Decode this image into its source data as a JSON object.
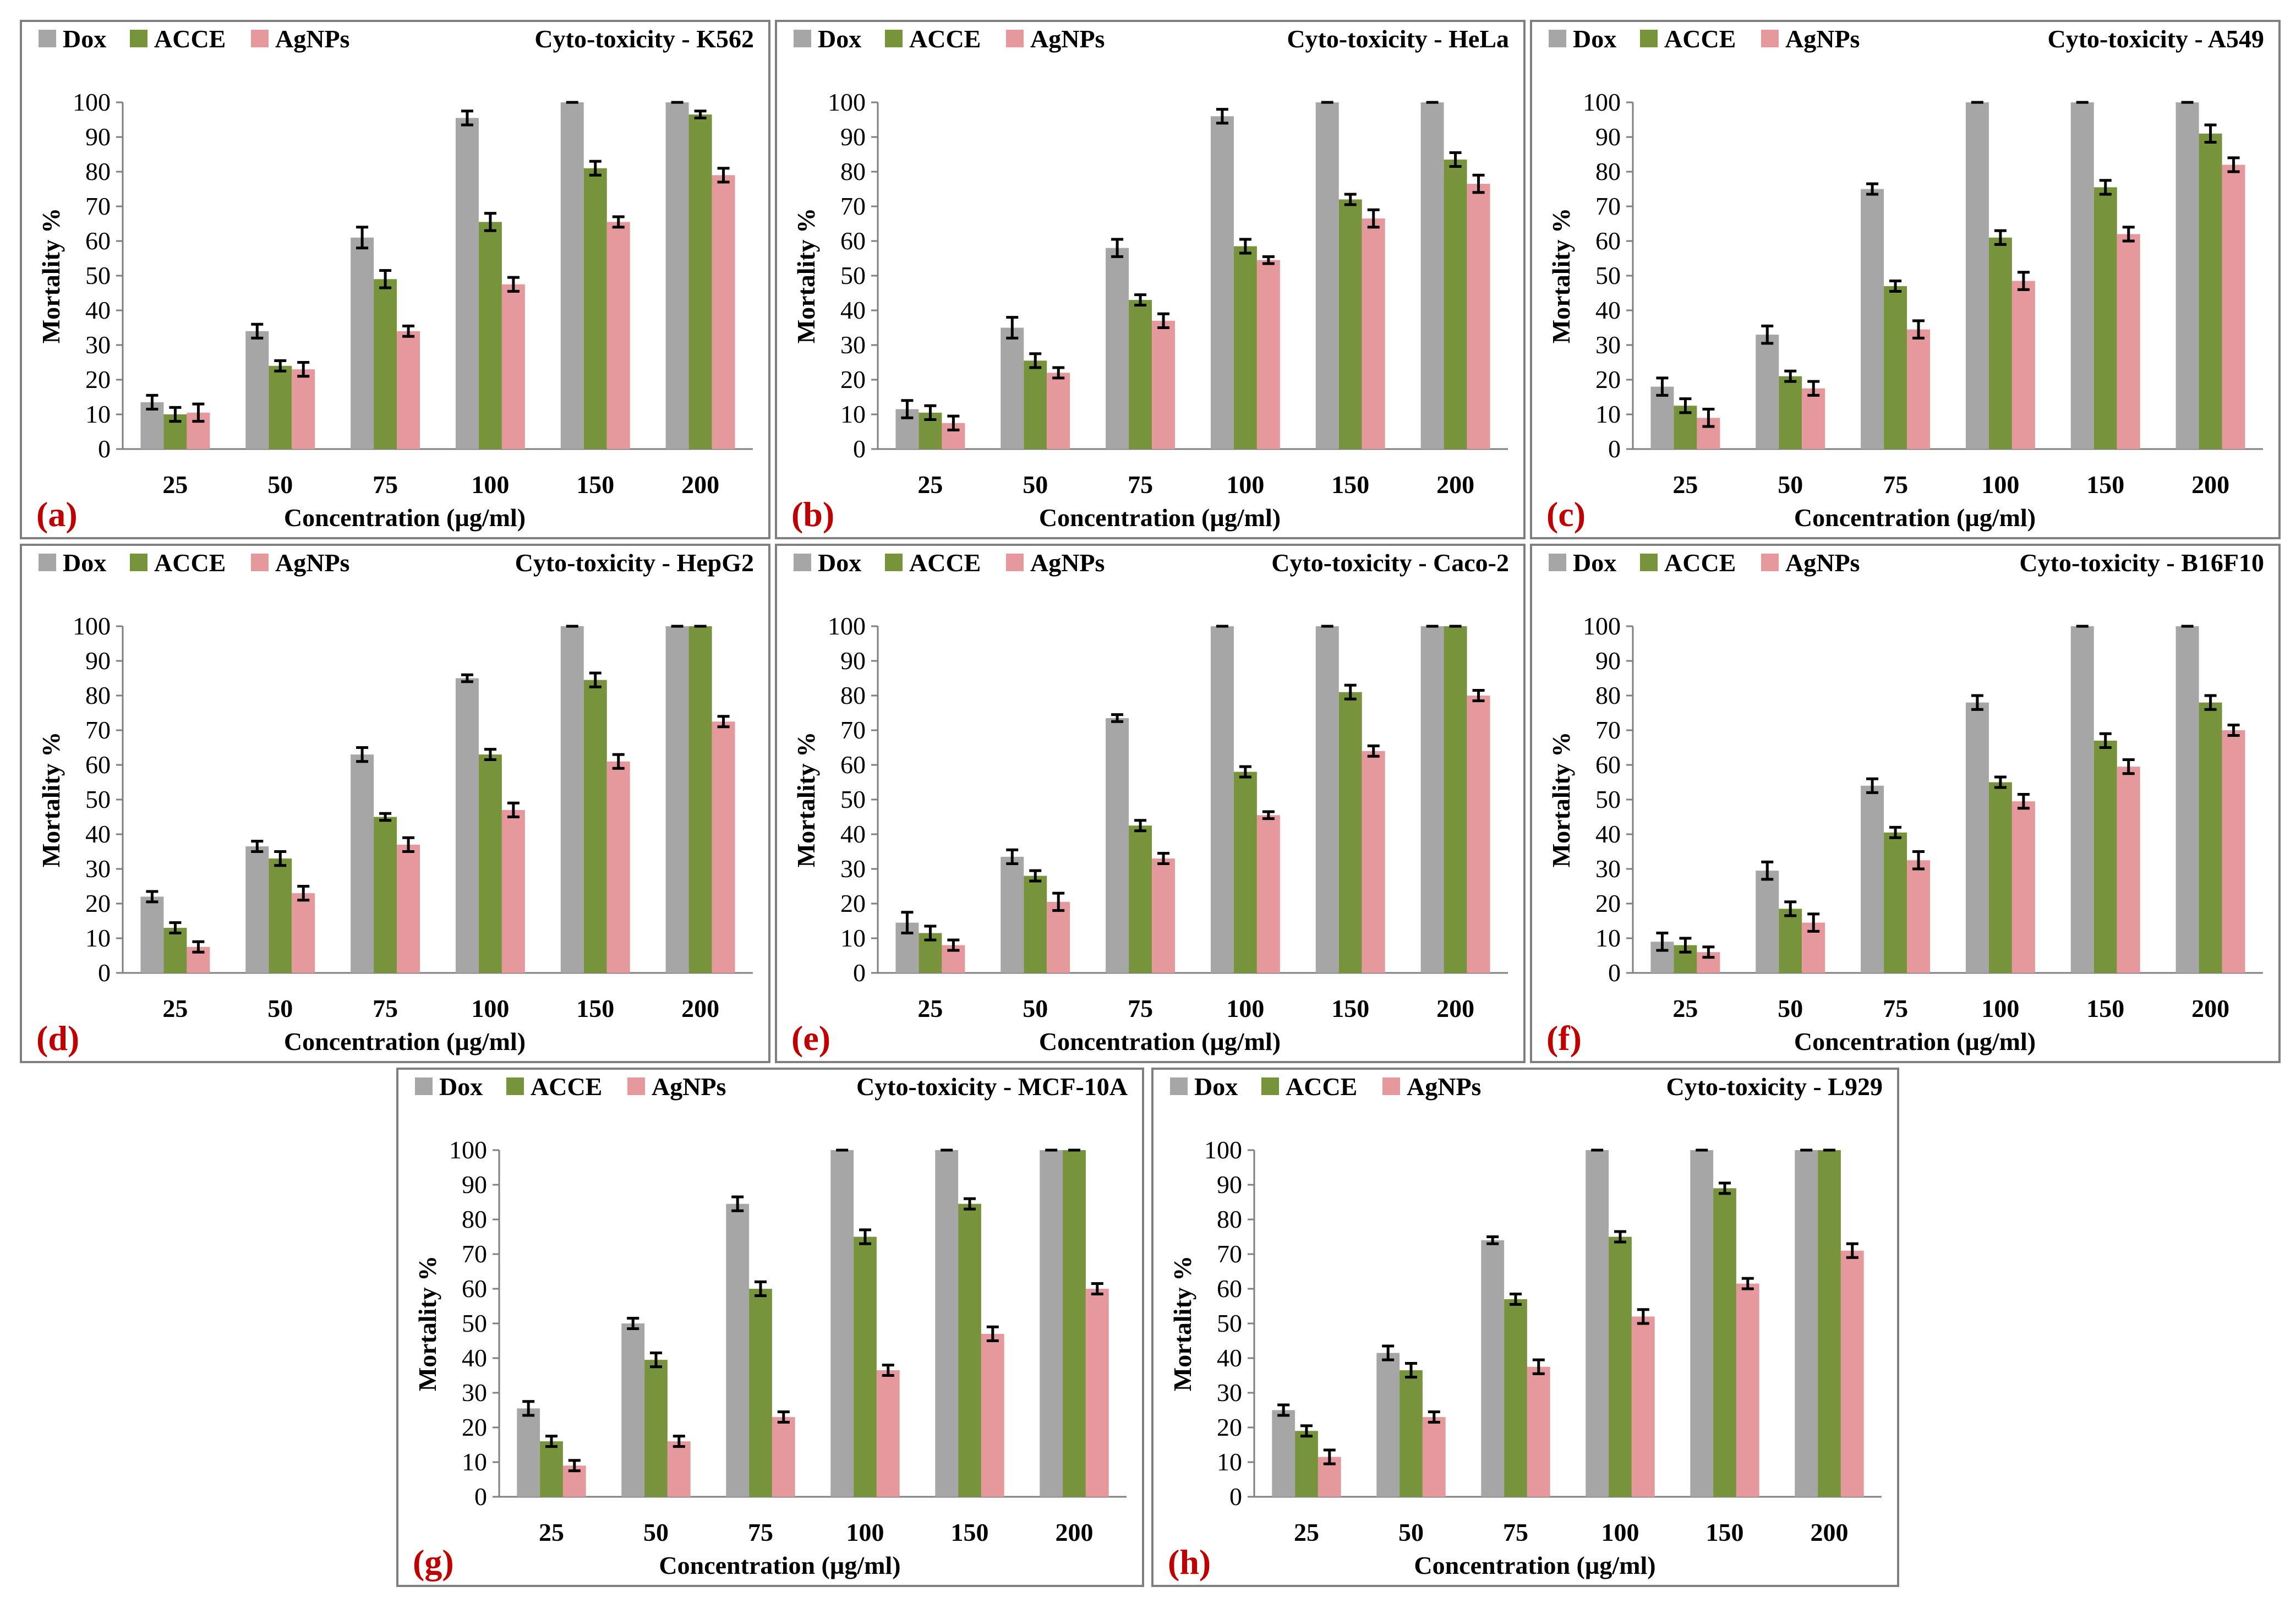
{
  "colors": {
    "dox": "#a6a6a6",
    "acce": "#77933c",
    "agnps": "#e6999c",
    "letter": "#c00000",
    "frame": "#7f7f7f"
  },
  "chart_data": [
    {
      "type": "bar",
      "letter": "(a)",
      "title": "Cyto-toxicity - K562",
      "xlabel": "Concentration (µg/ml)",
      "ylabel": "Mortality %",
      "ylim": [
        0,
        100
      ],
      "yticks": [
        "0",
        "10",
        "20",
        "30",
        "40",
        "50",
        "60",
        "70",
        "80",
        "90",
        "100"
      ],
      "categories": [
        "25",
        "50",
        "75",
        "100",
        "150",
        "200"
      ],
      "series": [
        {
          "name": "Dox",
          "values": [
            13.5,
            34,
            61,
            95.5,
            100,
            100
          ],
          "errors": [
            2,
            2,
            3,
            2,
            0,
            0
          ]
        },
        {
          "name": "ACCE",
          "values": [
            10,
            24,
            49,
            65.5,
            81,
            96.5
          ],
          "errors": [
            2,
            1.5,
            2.5,
            2.5,
            2,
            1
          ]
        },
        {
          "name": "AgNPs",
          "values": [
            10.5,
            23,
            34,
            47.5,
            65.5,
            79
          ],
          "errors": [
            2.5,
            2,
            1.5,
            2,
            1.5,
            2
          ]
        }
      ]
    },
    {
      "type": "bar",
      "letter": "(b)",
      "title": "Cyto-toxicity - HeLa",
      "xlabel": "Concentration (µg/ml)",
      "ylabel": "Mortality %",
      "ylim": [
        0,
        100
      ],
      "yticks": [
        "0",
        "10",
        "20",
        "30",
        "40",
        "50",
        "60",
        "70",
        "80",
        "90",
        "100"
      ],
      "categories": [
        "25",
        "50",
        "75",
        "100",
        "150",
        "200"
      ],
      "series": [
        {
          "name": "Dox",
          "values": [
            11.5,
            35,
            58,
            96,
            100,
            100
          ],
          "errors": [
            2.5,
            3,
            2.5,
            2,
            0,
            0
          ]
        },
        {
          "name": "ACCE",
          "values": [
            10.5,
            25.5,
            43,
            58.5,
            72,
            83.5
          ],
          "errors": [
            2,
            2,
            1.5,
            2,
            1.5,
            2
          ]
        },
        {
          "name": "AgNPs",
          "values": [
            7.5,
            22,
            37,
            54.5,
            66.5,
            76.5
          ],
          "errors": [
            2,
            1.5,
            2,
            1,
            2.5,
            2.5
          ]
        }
      ]
    },
    {
      "type": "bar",
      "letter": "(c)",
      "title": "Cyto-toxicity - A549",
      "xlabel": "Concentration (µg/ml)",
      "ylabel": "Mortality %",
      "ylim": [
        0,
        100
      ],
      "yticks": [
        "0",
        "10",
        "20",
        "30",
        "40",
        "50",
        "60",
        "70",
        "80",
        "90",
        "100"
      ],
      "categories": [
        "25",
        "50",
        "75",
        "100",
        "150",
        "200"
      ],
      "series": [
        {
          "name": "Dox",
          "values": [
            18,
            33,
            75,
            100,
            100,
            100
          ],
          "errors": [
            2.5,
            2.5,
            1.5,
            0,
            0,
            0
          ]
        },
        {
          "name": "ACCE",
          "values": [
            12.5,
            21,
            47,
            61,
            75.5,
            91
          ],
          "errors": [
            2,
            1.5,
            1.5,
            2,
            2,
            2.5
          ]
        },
        {
          "name": "AgNPs",
          "values": [
            9,
            17.5,
            34.5,
            48.5,
            62,
            82
          ],
          "errors": [
            2.5,
            2,
            2.5,
            2.5,
            2,
            2
          ]
        }
      ]
    },
    {
      "type": "bar",
      "letter": "(d)",
      "title": "Cyto-toxicity - HepG2",
      "xlabel": "Concentration (µg/ml)",
      "ylabel": "Mortality %",
      "ylim": [
        0,
        100
      ],
      "yticks": [
        "0",
        "10",
        "20",
        "30",
        "40",
        "50",
        "60",
        "70",
        "80",
        "90",
        "100"
      ],
      "categories": [
        "25",
        "50",
        "75",
        "100",
        "150",
        "200"
      ],
      "series": [
        {
          "name": "Dox",
          "values": [
            22,
            36.5,
            63,
            85,
            100,
            100
          ],
          "errors": [
            1.5,
            1.5,
            2,
            1,
            0,
            0
          ]
        },
        {
          "name": "ACCE",
          "values": [
            13,
            33,
            45,
            63,
            84.5,
            100
          ],
          "errors": [
            1.5,
            2,
            1,
            1.5,
            2,
            0
          ]
        },
        {
          "name": "AgNPs",
          "values": [
            7.5,
            23,
            37,
            47,
            61,
            72.5
          ],
          "errors": [
            1.5,
            2,
            2,
            2,
            2,
            1.5
          ]
        }
      ]
    },
    {
      "type": "bar",
      "letter": "(e)",
      "title": "Cyto-toxicity - Caco-2",
      "xlabel": "Concentration (µg/ml)",
      "ylabel": "Mortality %",
      "ylim": [
        0,
        100
      ],
      "yticks": [
        "0",
        "10",
        "20",
        "30",
        "40",
        "50",
        "60",
        "70",
        "80",
        "90",
        "100"
      ],
      "categories": [
        "25",
        "50",
        "75",
        "100",
        "150",
        "200"
      ],
      "series": [
        {
          "name": "Dox",
          "values": [
            14.5,
            33.5,
            73.5,
            100,
            100,
            100
          ],
          "errors": [
            3,
            2,
            1,
            0,
            0,
            0
          ]
        },
        {
          "name": "ACCE",
          "values": [
            11.5,
            28,
            42.5,
            58,
            81,
            100
          ],
          "errors": [
            2,
            1.5,
            1.5,
            1.5,
            2,
            0
          ]
        },
        {
          "name": "AgNPs",
          "values": [
            8,
            20.5,
            33,
            45.5,
            64,
            80
          ],
          "errors": [
            1.5,
            2.5,
            1.5,
            1,
            1.5,
            1.5
          ]
        }
      ]
    },
    {
      "type": "bar",
      "letter": "(f)",
      "title": "Cyto-toxicity - B16F10",
      "xlabel": "Concentration (µg/ml)",
      "ylabel": "Mortality %",
      "ylim": [
        0,
        100
      ],
      "yticks": [
        "0",
        "10",
        "20",
        "30",
        "40",
        "50",
        "60",
        "70",
        "80",
        "90",
        "100"
      ],
      "categories": [
        "25",
        "50",
        "75",
        "100",
        "150",
        "200"
      ],
      "series": [
        {
          "name": "Dox",
          "values": [
            9,
            29.5,
            54,
            78,
            100,
            100
          ],
          "errors": [
            2.5,
            2.5,
            2,
            2,
            0,
            0
          ]
        },
        {
          "name": "ACCE",
          "values": [
            8,
            18.5,
            40.5,
            55,
            67,
            78
          ],
          "errors": [
            2,
            2,
            1.5,
            1.5,
            2,
            2
          ]
        },
        {
          "name": "AgNPs",
          "values": [
            6,
            14.5,
            32.5,
            49.5,
            59.5,
            70
          ],
          "errors": [
            1.5,
            2.5,
            2.5,
            2,
            2,
            1.5
          ]
        }
      ]
    },
    {
      "type": "bar",
      "letter": "(g)",
      "title": "Cyto-toxicity - MCF-10A",
      "xlabel": "Concentration (µg/ml)",
      "ylabel": "Mortality %",
      "ylim": [
        0,
        100
      ],
      "yticks": [
        "0",
        "10",
        "20",
        "30",
        "40",
        "50",
        "60",
        "70",
        "80",
        "90",
        "100"
      ],
      "categories": [
        "25",
        "50",
        "75",
        "100",
        "150",
        "200"
      ],
      "series": [
        {
          "name": "Dox",
          "values": [
            25.5,
            50,
            84.5,
            100,
            100,
            100
          ],
          "errors": [
            2,
            1.5,
            2,
            0,
            0,
            0
          ]
        },
        {
          "name": "ACCE",
          "values": [
            16,
            39.5,
            60,
            75,
            84.5,
            100
          ],
          "errors": [
            1.5,
            2,
            2,
            2,
            1.5,
            0
          ]
        },
        {
          "name": "AgNPs",
          "values": [
            9,
            16,
            23,
            36.5,
            47,
            60
          ],
          "errors": [
            1.5,
            1.5,
            1.5,
            1.5,
            2,
            1.5
          ]
        }
      ]
    },
    {
      "type": "bar",
      "letter": "(h)",
      "title": "Cyto-toxicity - L929",
      "xlabel": "Concentration (µg/ml)",
      "ylabel": "Mortality %",
      "ylim": [
        0,
        100
      ],
      "yticks": [
        "0",
        "10",
        "20",
        "30",
        "40",
        "50",
        "60",
        "70",
        "80",
        "90",
        "100"
      ],
      "categories": [
        "25",
        "50",
        "75",
        "100",
        "150",
        "200"
      ],
      "series": [
        {
          "name": "Dox",
          "values": [
            25,
            41.5,
            74,
            100,
            100,
            100
          ],
          "errors": [
            1.5,
            2,
            1,
            0,
            0,
            0
          ]
        },
        {
          "name": "ACCE",
          "values": [
            19,
            36.5,
            57,
            75,
            89,
            100
          ],
          "errors": [
            1.5,
            2,
            1.5,
            1.5,
            1.5,
            0
          ]
        },
        {
          "name": "AgNPs",
          "values": [
            11.5,
            23,
            37.5,
            52,
            61.5,
            71
          ],
          "errors": [
            2,
            1.5,
            2,
            2,
            1.5,
            2
          ]
        }
      ]
    }
  ]
}
